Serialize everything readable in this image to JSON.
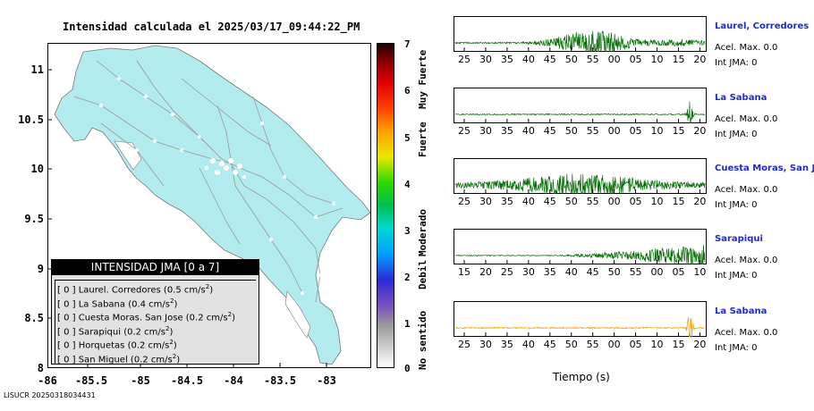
{
  "map": {
    "title": "Intensidad calculada el 2025/03/17_09:44:22_PM",
    "y_ticks": [
      "11",
      "10.5",
      "10",
      "9.5",
      "9",
      "8.5",
      "8"
    ],
    "x_ticks": [
      "-86",
      "-85.5",
      "-85",
      "-84.5",
      "-84",
      "-83.5",
      "-83"
    ],
    "land_color": "#b3ecee",
    "road_color": "#9a9a9a"
  },
  "colorbar": {
    "numbers": [
      "7",
      "6",
      "5",
      "4",
      "3",
      "2",
      "1",
      "0"
    ],
    "labels": [
      "Muy Fuerte",
      "Fuerte",
      "Moderado",
      "Debil",
      "No sentido"
    ]
  },
  "legend": {
    "title": "INTENSIDAD JMA [0 a 7]",
    "items": [
      {
        "level": "[ 0 ]",
        "text": "Laurel. Corredores (0.5 cm/s",
        "sup": "2",
        "tail": ")"
      },
      {
        "level": "[ 0 ]",
        "text": "La Sabana (0.4 cm/s",
        "sup": "2",
        "tail": ")"
      },
      {
        "level": "[ 0 ]",
        "text": "Cuesta Moras. San Jose (0.2 cm/s",
        "sup": "2",
        "tail": ")"
      },
      {
        "level": "[ 0 ]",
        "text": "Sarapiqui (0.2 cm/s",
        "sup": "2",
        "tail": ")"
      },
      {
        "level": "[ 0 ]",
        "text": "Horquetas (0.2 cm/s",
        "sup": "2",
        "tail": ")"
      },
      {
        "level": "[ 0 ]",
        "text": "San Miguel (0.2 cm/s",
        "sup": "2",
        "tail": ")"
      }
    ]
  },
  "footer": "LISUCR 20250318034431",
  "waveforms": {
    "x_title": "Tiempo (s)",
    "accel_label": "Acel. Max. 0.0",
    "int_label": "Int JMA: 0",
    "panels": [
      {
        "station": "Laurel, Corredores",
        "color": "#0a6e0a",
        "ticks": [
          "25",
          "30",
          "35",
          "40",
          "45",
          "50",
          "55",
          "00",
          "05",
          "10",
          "15",
          "20"
        ],
        "burst": "mid"
      },
      {
        "station": "La Sabana",
        "color": "#0a6e0a",
        "ticks": [
          "25",
          "30",
          "35",
          "40",
          "45",
          "50",
          "55",
          "00",
          "05",
          "10",
          "15",
          "20"
        ],
        "burst": "end"
      },
      {
        "station": "Cuesta Moras, San Jose",
        "color": "#0a6e0a",
        "ticks": [
          "25",
          "30",
          "35",
          "40",
          "45",
          "50",
          "55",
          "00",
          "05",
          "10",
          "15",
          "20"
        ],
        "burst": "broad"
      },
      {
        "station": "Sarapiqui",
        "color": "#0a6e0a",
        "ticks": [
          "15",
          "20",
          "25",
          "30",
          "35",
          "40",
          "45",
          "50",
          "55",
          "00",
          "05",
          "10"
        ],
        "burst": "late"
      },
      {
        "station": "La Sabana",
        "color": "#f0a000",
        "ticks": [
          "25",
          "30",
          "35",
          "40",
          "45",
          "50",
          "55",
          "00",
          "05",
          "10",
          "15",
          "20"
        ],
        "burst": "end"
      }
    ]
  }
}
